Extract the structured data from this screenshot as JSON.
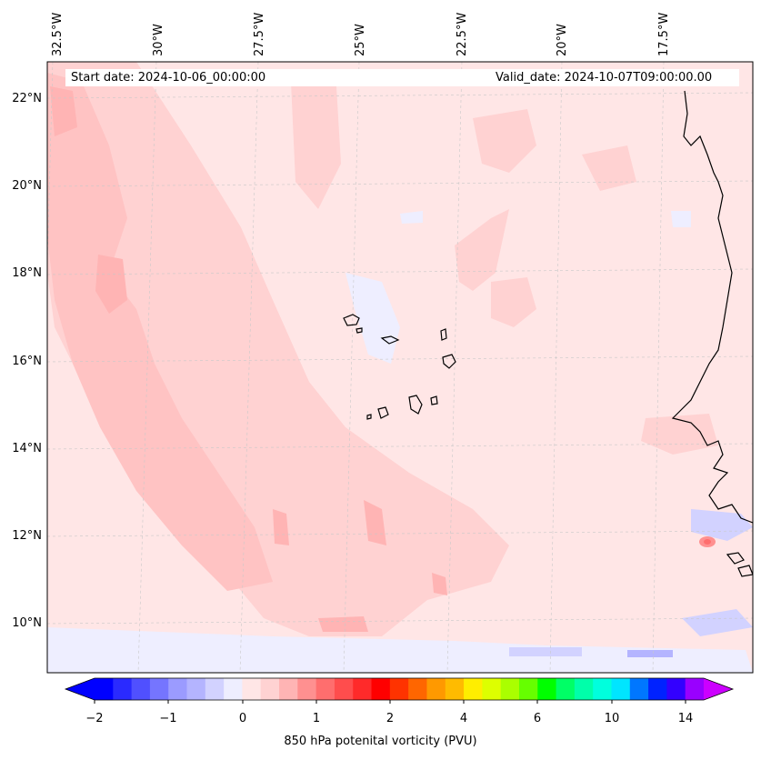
{
  "header": {
    "start_date": "Start date: 2024-10-06_00:00:00",
    "valid_date": "Valid_date: 2024-10-07T09:00:00.00"
  },
  "map": {
    "lon_labels": [
      "32.5°W",
      "30°W",
      "27.5°W",
      "25°W",
      "22.5°W",
      "20°W",
      "17.5°W"
    ],
    "lat_labels": [
      "22°N",
      "20°N",
      "18°N",
      "16°N",
      "14°N",
      "12°N",
      "10°N"
    ],
    "background_color": "#ffe6e6",
    "coastline_color": "#000000",
    "gridlines": true
  },
  "colorbar": {
    "label": "850 hPa potenital vorticity (PVU)",
    "tick_labels": [
      "−2",
      "−1",
      "0",
      "1",
      "2",
      "4",
      "6",
      "10",
      "14"
    ],
    "colors": [
      "#0000ff",
      "#2a2aff",
      "#5050ff",
      "#7575ff",
      "#9b9bff",
      "#b4b4ff",
      "#d2d2ff",
      "#eeeeff",
      "#ffe6e6",
      "#ffd2d2",
      "#ffb4b4",
      "#ff9090",
      "#ff6e6e",
      "#ff4d4d",
      "#ff2a2a",
      "#ff0000",
      "#ff3300",
      "#ff6600",
      "#ff9900",
      "#ffbb00",
      "#ffee00",
      "#ddff00",
      "#aaff00",
      "#66ff00",
      "#00ff00",
      "#00ff66",
      "#00ffaa",
      "#00ffdd",
      "#00e5ff",
      "#0077ff",
      "#0022ff",
      "#3300ff",
      "#9900ff"
    ],
    "extend_low_color": "#0000ff",
    "extend_high_color": "#cc00ff"
  }
}
